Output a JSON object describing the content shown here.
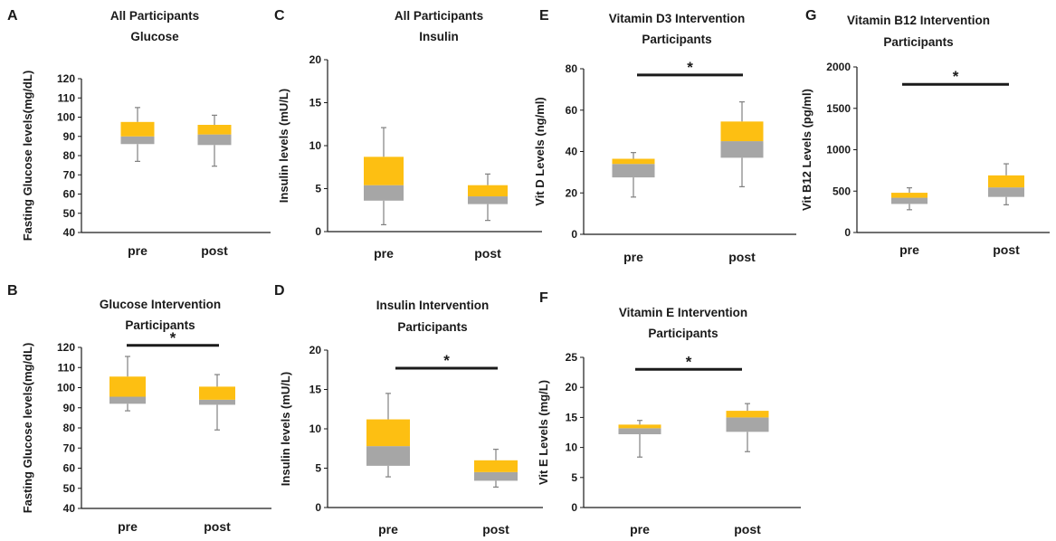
{
  "colors": {
    "q1": "#a6a6a6",
    "q3": "#fdbf12",
    "whisker": "#808080",
    "axis": "#1a1a1a",
    "sig": "#1a1a1a"
  },
  "chart_data": [
    {
      "id": "A",
      "type": "boxplot",
      "panel_letter": "A",
      "title": [
        "All Participants",
        "Glucose"
      ],
      "ylabel": "Fasting Glucose levels(mg/dL)",
      "ylim": [
        40,
        120
      ],
      "yticks": [
        "40",
        "50",
        "60",
        "70",
        "80",
        "90",
        "100",
        "110",
        "120"
      ],
      "categories": [
        "pre",
        "post"
      ],
      "boxes": [
        {
          "min": 77,
          "q1": 86,
          "median": 90,
          "q3": 97.5,
          "max": 105
        },
        {
          "min": 74.5,
          "q1": 85.5,
          "median": 91,
          "q3": 96,
          "max": 101
        }
      ],
      "significance": null
    },
    {
      "id": "C",
      "type": "boxplot",
      "panel_letter": "C",
      "title": [
        "All Participants",
        "Insulin"
      ],
      "ylabel": "Insulin levels  (mU/L)",
      "ylim": [
        0,
        20
      ],
      "yticks": [
        "0",
        "5",
        "10",
        "15",
        "20"
      ],
      "categories": [
        "pre",
        "post"
      ],
      "boxes": [
        {
          "min": 0.8,
          "q1": 3.6,
          "median": 5.4,
          "q3": 8.7,
          "max": 12.1
        },
        {
          "min": 1.3,
          "q1": 3.2,
          "median": 4.1,
          "q3": 5.4,
          "max": 6.7
        }
      ],
      "significance": null
    },
    {
      "id": "E",
      "type": "boxplot",
      "panel_letter": "E",
      "title": [
        "Vitamin D3 Intervention",
        "Participants"
      ],
      "ylabel": "Vit D Levels  (ng/ml)",
      "ylim": [
        0,
        80
      ],
      "yticks": [
        "0",
        "20",
        "40",
        "60",
        "80"
      ],
      "categories": [
        "pre",
        "post"
      ],
      "boxes": [
        {
          "min": 18,
          "q1": 27.5,
          "median": 34,
          "q3": 36.5,
          "max": 39.5
        },
        {
          "min": 23,
          "q1": 37,
          "median": 45,
          "q3": 54.5,
          "max": 64
        }
      ],
      "significance": "*",
      "sig_level": 77
    },
    {
      "id": "G",
      "type": "boxplot",
      "panel_letter": "G",
      "title": [
        "Vitamin B12 Intervention",
        "Participants"
      ],
      "ylabel": "Vit B12 Levels  (pg/ml)",
      "ylim": [
        0,
        2000
      ],
      "yticks": [
        "0",
        "500",
        "1000",
        "1500",
        "2000"
      ],
      "categories": [
        "pre",
        "post"
      ],
      "boxes": [
        {
          "min": 275,
          "q1": 345,
          "median": 420,
          "q3": 480,
          "max": 540
        },
        {
          "min": 335,
          "q1": 430,
          "median": 545,
          "q3": 690,
          "max": 830
        }
      ],
      "significance": "*",
      "sig_level": 1790
    },
    {
      "id": "B",
      "type": "boxplot",
      "panel_letter": "B",
      "title": [
        "Glucose Intervention",
        "Participants"
      ],
      "ylabel": "Fasting Glucose levels(mg/dL)",
      "ylim": [
        40,
        120
      ],
      "yticks": [
        "40",
        "50",
        "60",
        "70",
        "80",
        "90",
        "100",
        "110",
        "120"
      ],
      "categories": [
        "pre",
        "post"
      ],
      "boxes": [
        {
          "min": 88.5,
          "q1": 92,
          "median": 95.5,
          "q3": 105.5,
          "max": 115.5
        },
        {
          "min": 79,
          "q1": 91.5,
          "median": 94,
          "q3": 100.5,
          "max": 106.5
        }
      ],
      "significance": "*",
      "sig_level": 121
    },
    {
      "id": "D",
      "type": "boxplot",
      "panel_letter": "D",
      "title": [
        "Insulin Intervention",
        "Participants"
      ],
      "ylabel": "Insulin levels  (mU/L)",
      "ylim": [
        0,
        20
      ],
      "yticks": [
        "0",
        "5",
        "10",
        "15",
        "20"
      ],
      "categories": [
        "pre",
        "post"
      ],
      "boxes": [
        {
          "min": 3.9,
          "q1": 5.3,
          "median": 7.8,
          "q3": 11.2,
          "max": 14.5
        },
        {
          "min": 2.6,
          "q1": 3.4,
          "median": 4.5,
          "q3": 6.0,
          "max": 7.4
        }
      ],
      "significance": "*",
      "sig_level": 17.7
    },
    {
      "id": "F",
      "type": "boxplot",
      "panel_letter": "F",
      "title": [
        "Vitamin E Intervention",
        "Participants"
      ],
      "ylabel": "Vit E Levels  (mg/L)",
      "ylim": [
        0,
        25
      ],
      "yticks": [
        "0",
        "5",
        "10",
        "15",
        "20",
        "25"
      ],
      "categories": [
        "pre",
        "post"
      ],
      "boxes": [
        {
          "min": 8.4,
          "q1": 12.2,
          "median": 13.2,
          "q3": 13.8,
          "max": 14.5
        },
        {
          "min": 9.3,
          "q1": 12.6,
          "median": 15.0,
          "q3": 16.1,
          "max": 17.3
        }
      ],
      "significance": "*",
      "sig_level": 23
    }
  ]
}
